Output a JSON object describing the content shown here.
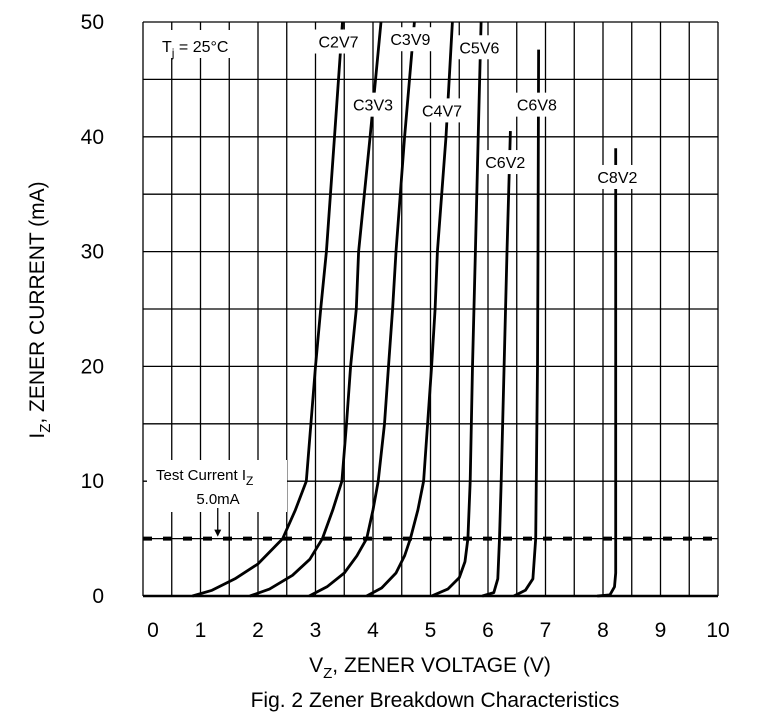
{
  "chart_data": {
    "type": "line",
    "caption": "Fig. 2  Zener Breakdown Characteristics",
    "xlabel": {
      "main": "V",
      "sub": "Z",
      "rest": ", ZENER VOLTAGE (V)"
    },
    "ylabel": {
      "main": "I",
      "sub": "Z",
      "rest": ", ZENER CURRENT (mA)"
    },
    "xlim": [
      0,
      10
    ],
    "ylim": [
      0,
      50
    ],
    "x_ticks": [
      "0",
      "1",
      "2",
      "3",
      "4",
      "5",
      "6",
      "7",
      "8",
      "9",
      "10"
    ],
    "y_ticks": [
      "0",
      "10",
      "20",
      "30",
      "40",
      "50"
    ],
    "grid": {
      "x_step": 0.5,
      "y_step": 5,
      "on": true
    },
    "temperature_note": {
      "main": "T",
      "sub": "j",
      "rest": " = 25°C"
    },
    "test_current": {
      "label_main": "Test Current I",
      "label_sub": "Z",
      "value_label": "5.0mA",
      "value": 5.0,
      "arrow_x": 1.3
    },
    "series": [
      {
        "name": "C2V7",
        "label_at": [
          3.4,
          48.3
        ],
        "points": [
          [
            0.86,
            0
          ],
          [
            1.2,
            0.5
          ],
          [
            1.6,
            1.5
          ],
          [
            2.0,
            2.8
          ],
          [
            2.43,
            5
          ],
          [
            2.65,
            7.5
          ],
          [
            2.84,
            10
          ],
          [
            2.92,
            15
          ],
          [
            3.0,
            20
          ],
          [
            3.09,
            25
          ],
          [
            3.19,
            30
          ],
          [
            3.33,
            40
          ],
          [
            3.47,
            50
          ]
        ]
      },
      {
        "name": "C3V3",
        "label_at": [
          4.0,
          42.8
        ],
        "points": [
          [
            1.86,
            0
          ],
          [
            2.2,
            0.6
          ],
          [
            2.6,
            1.8
          ],
          [
            2.9,
            3.2
          ],
          [
            3.12,
            5
          ],
          [
            3.3,
            7.5
          ],
          [
            3.46,
            10
          ],
          [
            3.54,
            15
          ],
          [
            3.61,
            20
          ],
          [
            3.71,
            25
          ],
          [
            3.75,
            30
          ],
          [
            3.95,
            40
          ],
          [
            4.14,
            50
          ]
        ]
      },
      {
        "name": "C3V9",
        "label_at": [
          4.65,
          48.5
        ],
        "points": [
          [
            2.89,
            0
          ],
          [
            3.2,
            0.8
          ],
          [
            3.5,
            2
          ],
          [
            3.72,
            3.5
          ],
          [
            3.89,
            5
          ],
          [
            4.0,
            7.5
          ],
          [
            4.09,
            10
          ],
          [
            4.2,
            15
          ],
          [
            4.27,
            20
          ],
          [
            4.34,
            25
          ],
          [
            4.4,
            30
          ],
          [
            4.55,
            40
          ],
          [
            4.72,
            50
          ]
        ]
      },
      {
        "name": "C4V7",
        "label_at": [
          5.2,
          42.3
        ],
        "points": [
          [
            3.89,
            0
          ],
          [
            4.15,
            0.7
          ],
          [
            4.4,
            2
          ],
          [
            4.55,
            3.5
          ],
          [
            4.65,
            5
          ],
          [
            4.78,
            7.5
          ],
          [
            4.88,
            10
          ],
          [
            4.95,
            15
          ],
          [
            5.02,
            20
          ],
          [
            5.08,
            25
          ],
          [
            5.12,
            30
          ],
          [
            5.27,
            40
          ],
          [
            5.38,
            50
          ]
        ]
      },
      {
        "name": "C5V6",
        "label_at": [
          5.85,
          47.8
        ],
        "points": [
          [
            5.02,
            0
          ],
          [
            5.3,
            0.6
          ],
          [
            5.5,
            1.6
          ],
          [
            5.6,
            3
          ],
          [
            5.65,
            5
          ],
          [
            5.69,
            10
          ],
          [
            5.73,
            20
          ],
          [
            5.78,
            30
          ],
          [
            5.83,
            40
          ],
          [
            5.88,
            50
          ]
        ]
      },
      {
        "name": "C6V2",
        "label_at": [
          6.3,
          37.8
        ],
        "points": [
          [
            5.9,
            0
          ],
          [
            6.1,
            0.3
          ],
          [
            6.17,
            1.5
          ],
          [
            6.2,
            5
          ],
          [
            6.23,
            10
          ],
          [
            6.28,
            20
          ],
          [
            6.33,
            30
          ],
          [
            6.39,
            40.5
          ]
        ]
      },
      {
        "name": "C6V8",
        "label_at": [
          6.85,
          42.8
        ],
        "points": [
          [
            6.45,
            0
          ],
          [
            6.65,
            0.5
          ],
          [
            6.78,
            1.5
          ],
          [
            6.83,
            5
          ],
          [
            6.84,
            10
          ],
          [
            6.86,
            20
          ],
          [
            6.87,
            30
          ],
          [
            6.88,
            47.6
          ]
        ]
      },
      {
        "name": "C8V2",
        "label_at": [
          8.25,
          36.5
        ],
        "points": [
          [
            7.9,
            0
          ],
          [
            8.12,
            0.1
          ],
          [
            8.2,
            0.8
          ],
          [
            8.22,
            2
          ],
          [
            8.22,
            10
          ],
          [
            8.22,
            20
          ],
          [
            8.22,
            30
          ],
          [
            8.22,
            39
          ]
        ]
      }
    ]
  }
}
